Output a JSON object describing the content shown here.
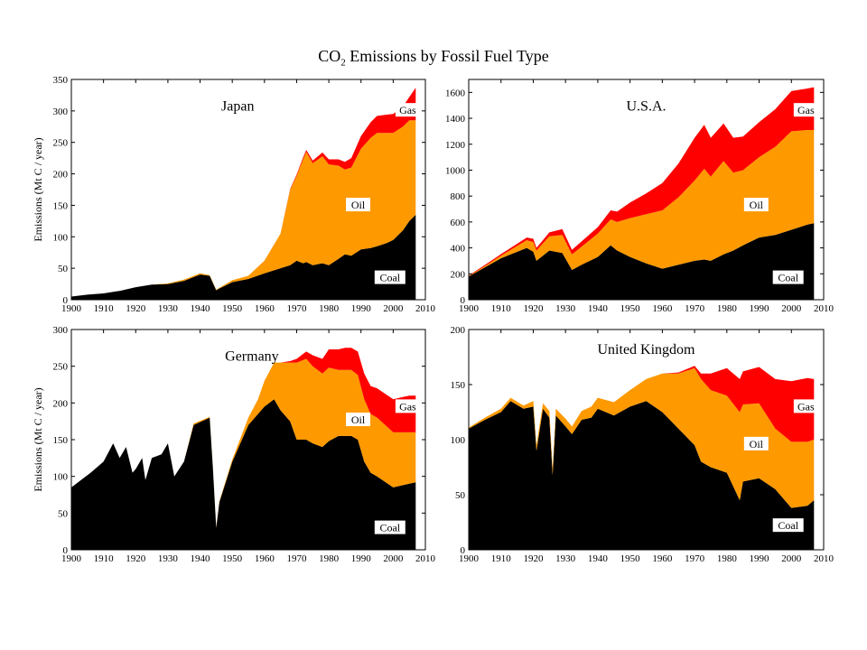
{
  "title": {
    "prefix": "CO",
    "sub": "2",
    "suffix": " Emissions by Fossil Fuel Type"
  },
  "colors": {
    "coal": "#000000",
    "oil": "#ff9900",
    "gas": "#ff0000"
  },
  "chart_data": [
    {
      "type": "area",
      "title": "Japan",
      "ylabel": "Emissions (Mt C / year)",
      "xlabel": "",
      "xlim": [
        1900,
        2010
      ],
      "ylim": [
        0,
        350
      ],
      "xticks": [
        1900,
        1910,
        1920,
        1930,
        1940,
        1950,
        1960,
        1970,
        1980,
        1990,
        2000,
        2010
      ],
      "yticks": [
        0,
        50,
        100,
        150,
        200,
        250,
        300,
        350
      ],
      "labels": [
        "Gas",
        "Oil",
        "Coal"
      ],
      "x": [
        1900,
        1905,
        1910,
        1915,
        1920,
        1925,
        1930,
        1935,
        1940,
        1943,
        1945,
        1946,
        1950,
        1955,
        1960,
        1965,
        1968,
        1970,
        1972,
        1973,
        1975,
        1978,
        1980,
        1983,
        1985,
        1987,
        1990,
        1993,
        1995,
        1998,
        2000,
        2003,
        2005,
        2007
      ],
      "series": [
        {
          "name": "Coal",
          "values": [
            5,
            8,
            10,
            14,
            20,
            24,
            25,
            30,
            40,
            38,
            15,
            18,
            28,
            33,
            42,
            50,
            55,
            62,
            58,
            60,
            55,
            58,
            55,
            65,
            72,
            70,
            80,
            82,
            85,
            90,
            95,
            110,
            125,
            135
          ]
        },
        {
          "name": "Oil",
          "values": [
            0,
            0,
            0,
            0,
            0,
            0,
            1,
            2,
            2,
            1,
            1,
            1,
            3,
            5,
            20,
            55,
            120,
            135,
            165,
            175,
            162,
            170,
            160,
            148,
            135,
            140,
            160,
            175,
            180,
            175,
            170,
            165,
            160,
            150
          ]
        },
        {
          "name": "Gas",
          "values": [
            0,
            0,
            0,
            0,
            0,
            0,
            0,
            0,
            0,
            0,
            0,
            0,
            0,
            0,
            0,
            0,
            1,
            2,
            3,
            3,
            4,
            6,
            8,
            10,
            12,
            15,
            20,
            25,
            27,
            29,
            30,
            32,
            37,
            52
          ]
        }
      ]
    },
    {
      "type": "area",
      "title": "U.S.A.",
      "ylabel": "",
      "xlabel": "",
      "xlim": [
        1900,
        2010
      ],
      "ylim": [
        0,
        1700
      ],
      "xticks": [
        1900,
        1910,
        1920,
        1930,
        1940,
        1950,
        1960,
        1970,
        1980,
        1990,
        2000,
        2010
      ],
      "yticks": [
        0,
        200,
        400,
        600,
        800,
        1000,
        1200,
        1400,
        1600
      ],
      "labels": [
        "Gas",
        "Oil",
        "Coal"
      ],
      "x": [
        1900,
        1905,
        1910,
        1913,
        1918,
        1920,
        1921,
        1925,
        1929,
        1932,
        1935,
        1940,
        1944,
        1946,
        1950,
        1955,
        1960,
        1965,
        1970,
        1973,
        1975,
        1979,
        1982,
        1985,
        1990,
        1995,
        2000,
        2005,
        2007
      ],
      "series": [
        {
          "name": "Coal",
          "values": [
            180,
            250,
            320,
            350,
            400,
            370,
            300,
            380,
            360,
            230,
            270,
            330,
            420,
            380,
            330,
            280,
            240,
            270,
            300,
            310,
            300,
            350,
            380,
            420,
            480,
            500,
            540,
            580,
            590
          ]
        },
        {
          "name": "Oil",
          "values": [
            2,
            10,
            20,
            35,
            60,
            75,
            80,
            110,
            140,
            120,
            140,
            180,
            200,
            220,
            300,
            380,
            450,
            520,
            620,
            700,
            650,
            720,
            600,
            580,
            620,
            680,
            760,
            730,
            720
          ]
        },
        {
          "name": "Gas",
          "values": [
            5,
            8,
            12,
            15,
            20,
            25,
            20,
            30,
            45,
            35,
            40,
            50,
            70,
            80,
            120,
            160,
            210,
            260,
            330,
            340,
            300,
            290,
            270,
            260,
            270,
            290,
            310,
            320,
            330
          ]
        }
      ]
    },
    {
      "type": "area",
      "title": "Germany",
      "ylabel": "Emissions (Mt C / year)",
      "xlabel": "",
      "xlim": [
        1900,
        2010
      ],
      "ylim": [
        0,
        300
      ],
      "xticks": [
        1900,
        1910,
        1920,
        1930,
        1940,
        1950,
        1960,
        1970,
        1980,
        1990,
        2000,
        2010
      ],
      "yticks": [
        0,
        50,
        100,
        150,
        200,
        250,
        300
      ],
      "labels": [
        "Gas",
        "Oil",
        "Coal"
      ],
      "x": [
        1900,
        1903,
        1906,
        1910,
        1913,
        1915,
        1917,
        1919,
        1920,
        1922,
        1923,
        1925,
        1928,
        1930,
        1932,
        1935,
        1938,
        1943,
        1944,
        1945,
        1946,
        1950,
        1955,
        1958,
        1960,
        1963,
        1965,
        1968,
        1970,
        1973,
        1975,
        1978,
        1980,
        1983,
        1985,
        1987,
        1989,
        1991,
        1993,
        1995,
        2000,
        2003,
        2005,
        2007
      ],
      "series": [
        {
          "name": "Coal",
          "values": [
            85,
            95,
            105,
            120,
            145,
            125,
            140,
            105,
            110,
            125,
            95,
            125,
            130,
            145,
            100,
            120,
            170,
            180,
            110,
            30,
            65,
            120,
            170,
            185,
            195,
            205,
            190,
            175,
            150,
            150,
            145,
            140,
            148,
            155,
            155,
            155,
            150,
            120,
            105,
            100,
            85,
            88,
            90,
            92
          ]
        },
        {
          "name": "Oil",
          "values": [
            0,
            0,
            0,
            0,
            0,
            0,
            0,
            0,
            0,
            0,
            0,
            0,
            0,
            0,
            0,
            0,
            2,
            1,
            1,
            1,
            1,
            3,
            10,
            20,
            35,
            50,
            65,
            80,
            105,
            110,
            105,
            100,
            100,
            90,
            90,
            90,
            88,
            85,
            80,
            80,
            75,
            72,
            70,
            68
          ]
        },
        {
          "name": "Gas",
          "values": [
            0,
            0,
            0,
            0,
            0,
            0,
            0,
            0,
            0,
            0,
            0,
            0,
            0,
            0,
            0,
            0,
            0,
            0,
            0,
            0,
            0,
            0,
            0,
            0,
            0,
            0,
            0,
            2,
            5,
            10,
            15,
            20,
            25,
            28,
            30,
            30,
            32,
            35,
            38,
            40,
            45,
            48,
            50,
            50
          ]
        }
      ]
    },
    {
      "type": "area",
      "title": "United Kingdom",
      "ylabel": "",
      "xlabel": "",
      "xlim": [
        1900,
        2010
      ],
      "ylim": [
        0,
        200
      ],
      "xticks": [
        1900,
        1910,
        1920,
        1930,
        1940,
        1950,
        1960,
        1970,
        1980,
        1990,
        2000,
        2010
      ],
      "yticks": [
        0,
        50,
        100,
        150,
        200
      ],
      "labels": [
        "Gas",
        "Oil",
        "Coal"
      ],
      "x": [
        1900,
        1905,
        1910,
        1913,
        1917,
        1920,
        1921,
        1923,
        1925,
        1926,
        1927,
        1930,
        1932,
        1935,
        1938,
        1940,
        1945,
        1950,
        1955,
        1960,
        1965,
        1970,
        1972,
        1975,
        1980,
        1984,
        1985,
        1990,
        1995,
        2000,
        2005,
        2007
      ],
      "series": [
        {
          "name": "Coal",
          "values": [
            110,
            118,
            125,
            135,
            128,
            130,
            90,
            128,
            120,
            68,
            122,
            112,
            105,
            118,
            120,
            128,
            122,
            130,
            135,
            125,
            110,
            95,
            80,
            75,
            70,
            45,
            62,
            65,
            55,
            38,
            40,
            45
          ]
        },
        {
          "name": "Oil",
          "values": [
            1,
            2,
            3,
            3,
            3,
            5,
            5,
            5,
            6,
            6,
            6,
            7,
            7,
            8,
            10,
            10,
            12,
            15,
            20,
            35,
            50,
            70,
            75,
            70,
            70,
            80,
            70,
            68,
            55,
            60,
            58,
            55
          ]
        },
        {
          "name": "Gas",
          "values": [
            0,
            0,
            0,
            0,
            0,
            0,
            0,
            0,
            0,
            0,
            0,
            0,
            0,
            0,
            0,
            0,
            0,
            0,
            0,
            0,
            1,
            2,
            5,
            15,
            25,
            30,
            30,
            33,
            45,
            55,
            58,
            55
          ]
        }
      ]
    }
  ]
}
